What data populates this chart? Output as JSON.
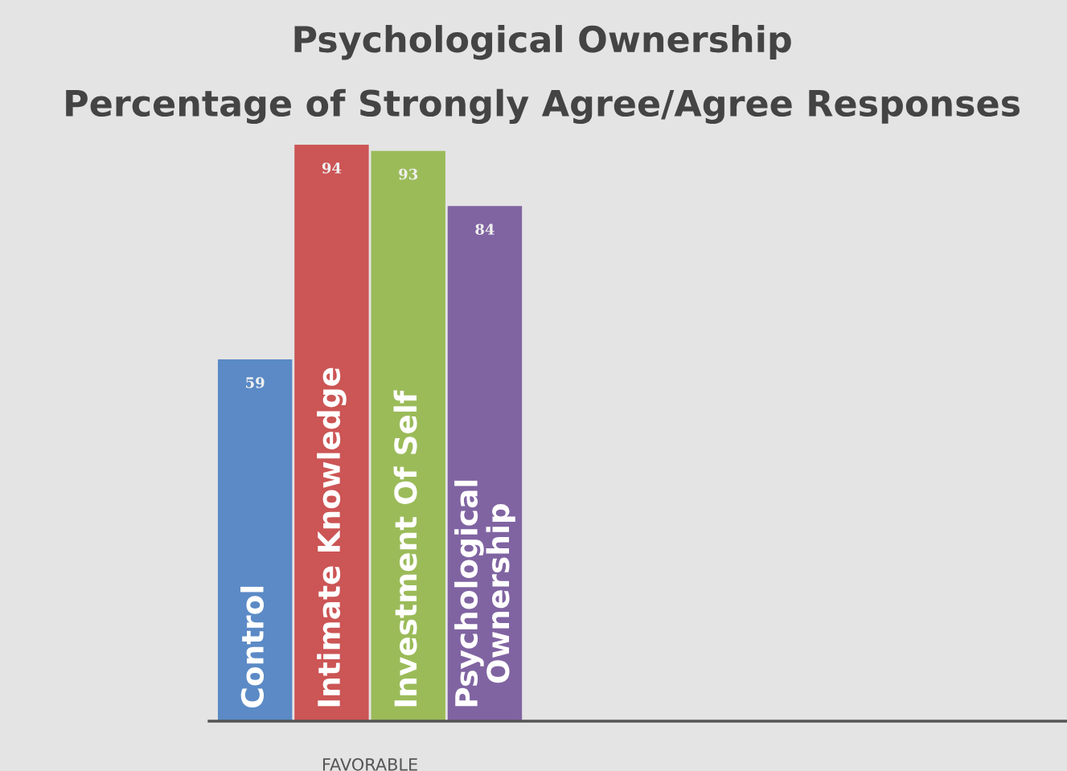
{
  "chart_data": {
    "type": "bar",
    "title": "Psychological Ownership",
    "subtitle": "Percentage of Strongly Agree/Agree Responses",
    "categories": [
      "Control",
      "Intimate Knowledge",
      "Investment Of Self",
      "Psychological\nOwnership"
    ],
    "values": [
      59,
      94,
      93,
      84
    ],
    "colors": [
      "#5b8ac6",
      "#cc5555",
      "#9bbb59",
      "#8064a2"
    ],
    "xlabel": "FAVORABLE",
    "data_labels": true,
    "tick_labels": "x",
    "grid": false
  }
}
